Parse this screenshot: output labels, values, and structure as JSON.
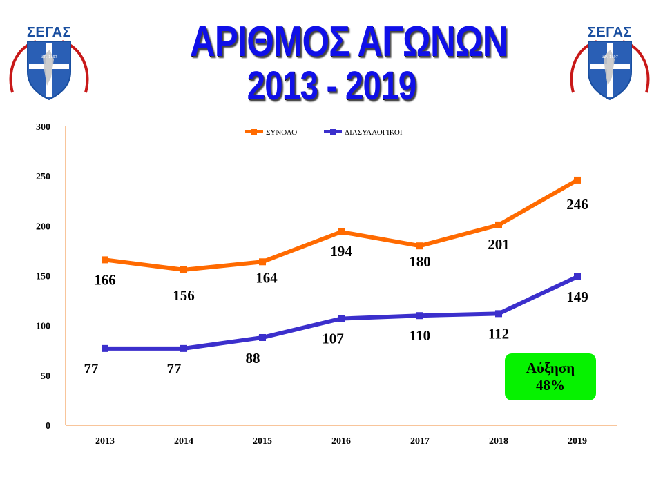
{
  "title": {
    "line1": "ΑΡΙΘΜΟΣ ΑΓΩΝΩΝ",
    "line2": "2013 - 2019"
  },
  "logo": {
    "text": "ΣΕΓΑΣ",
    "emblem_text": "ΙΔΡ. 1897"
  },
  "badge": {
    "label": "Αύξηση",
    "value": "48%"
  },
  "colors": {
    "total": "#ff6a00",
    "interclub": "#3b2fcc",
    "axis": "#f5b27a",
    "badge": "#06f200",
    "title": "#1010e8"
  },
  "chart_data": {
    "type": "line",
    "categories": [
      "2013",
      "2014",
      "2015",
      "2016",
      "2017",
      "2018",
      "2019"
    ],
    "series": [
      {
        "name": "ΣΥΝΟΛΟ",
        "values": [
          166,
          156,
          164,
          194,
          180,
          201,
          246
        ]
      },
      {
        "name": "ΔΙΑΣΥΛΛΟΓΙΚΟΙ",
        "values": [
          77,
          77,
          88,
          107,
          110,
          112,
          149
        ]
      }
    ],
    "ylim": [
      0,
      300
    ],
    "yticks": [
      0,
      50,
      100,
      150,
      200,
      250,
      300
    ],
    "grid": false,
    "legend": "top-center",
    "data_labels": true
  }
}
